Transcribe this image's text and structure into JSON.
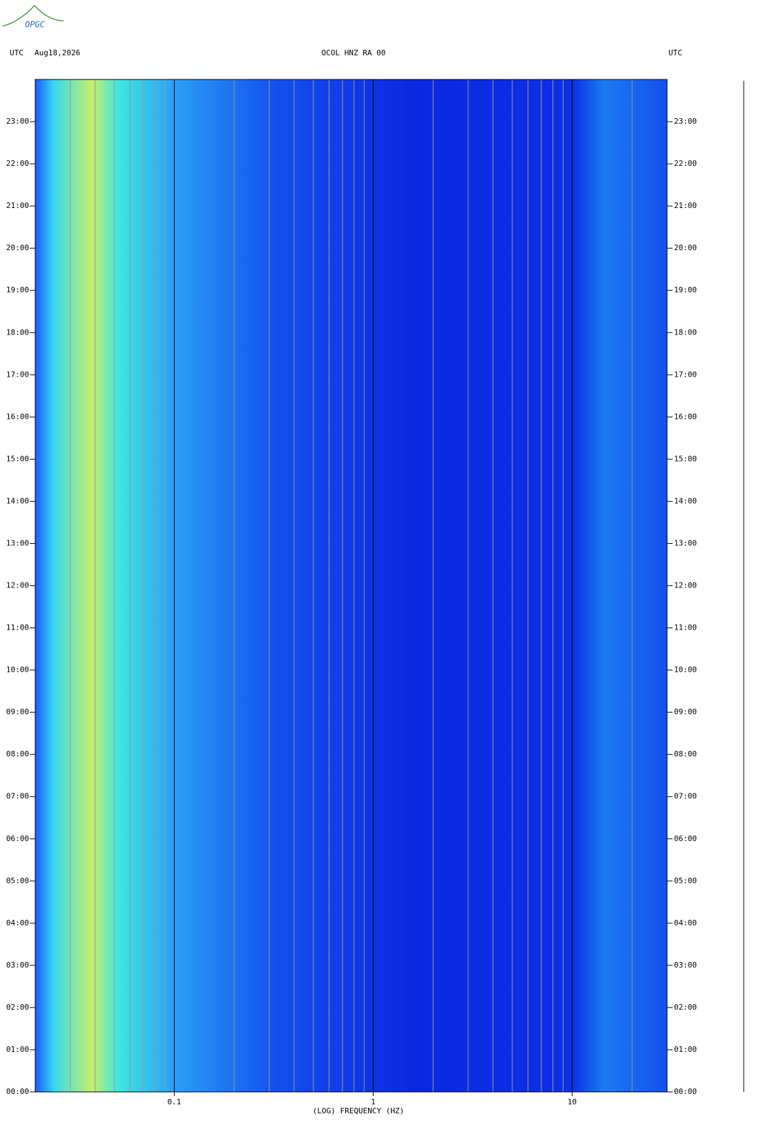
{
  "logo": "OPGC",
  "chart_data": {
    "type": "spectrogram",
    "timezone_left": "UTC",
    "date": "Aug18,2026",
    "title": "OCOL HNZ RA 00",
    "timezone_right": "UTC",
    "xlabel": "(LOG) FREQUENCY (HZ)",
    "xscale": "log",
    "xlim": [
      0.02,
      30
    ],
    "xticks": [
      0.1,
      1,
      10
    ],
    "xgrid": [
      0.02,
      0.03,
      0.04,
      0.05,
      0.06,
      0.07,
      0.08,
      0.09,
      0.1,
      0.2,
      0.3,
      0.4,
      0.5,
      0.6,
      0.7,
      0.8,
      0.9,
      1,
      2,
      3,
      4,
      5,
      6,
      7,
      8,
      9,
      10,
      20,
      30
    ],
    "ylim": [
      0,
      24
    ],
    "yticks": [
      {
        "value": 0,
        "label": "00:00"
      },
      {
        "value": 1,
        "label": "01:00"
      },
      {
        "value": 2,
        "label": "02:00"
      },
      {
        "value": 3,
        "label": "03:00"
      },
      {
        "value": 4,
        "label": "04:00"
      },
      {
        "value": 5,
        "label": "05:00"
      },
      {
        "value": 6,
        "label": "06:00"
      },
      {
        "value": 7,
        "label": "07:00"
      },
      {
        "value": 8,
        "label": "08:00"
      },
      {
        "value": 9,
        "label": "09:00"
      },
      {
        "value": 10,
        "label": "10:00"
      },
      {
        "value": 11,
        "label": "11:00"
      },
      {
        "value": 12,
        "label": "12:00"
      },
      {
        "value": 13,
        "label": "13:00"
      },
      {
        "value": 14,
        "label": "14:00"
      },
      {
        "value": 15,
        "label": "15:00"
      },
      {
        "value": 16,
        "label": "16:00"
      },
      {
        "value": 17,
        "label": "17:00"
      },
      {
        "value": 18,
        "label": "18:00"
      },
      {
        "value": 19,
        "label": "19:00"
      },
      {
        "value": 20,
        "label": "20:00"
      },
      {
        "value": 21,
        "label": "21:00"
      },
      {
        "value": 22,
        "label": "22:00"
      },
      {
        "value": 23,
        "label": "23:00"
      }
    ]
  }
}
